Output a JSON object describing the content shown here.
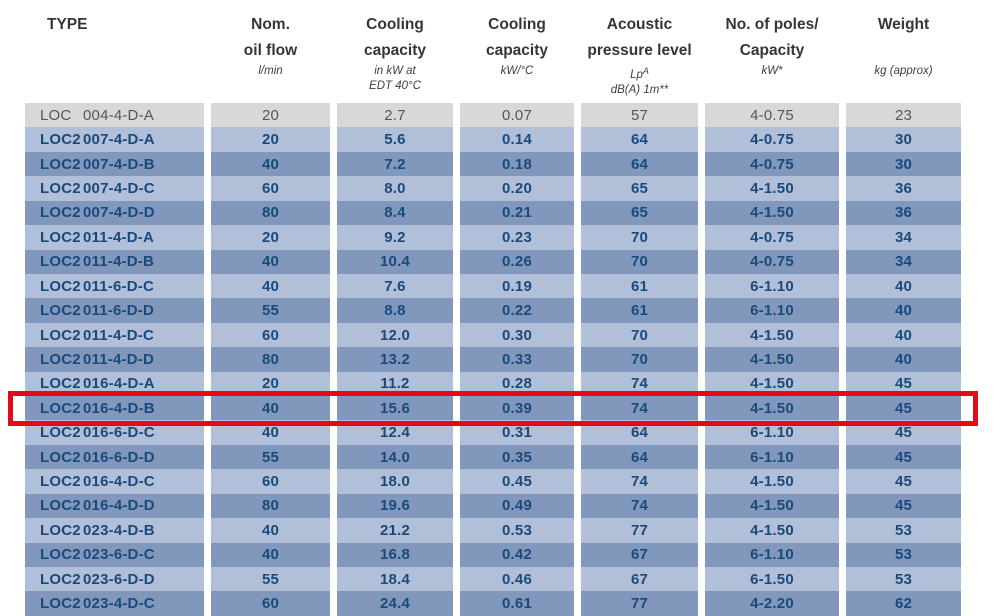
{
  "colors": {
    "page_background": "#ffffff",
    "row_gray_bg": "#d8d8d6",
    "row_gray_text": "#54575a",
    "row_light_blue_bg": "#b1bfd8",
    "row_medium_blue_bg": "#8197bb",
    "row_text_navy": "#1a4a7c",
    "header_text": "#333638",
    "highlight_red": "#e30b18"
  },
  "table": {
    "columns": [
      {
        "id": "type",
        "main": [
          "TYPE"
        ],
        "sub": []
      },
      {
        "id": "flow",
        "main": [
          "Nom.",
          "oil flow"
        ],
        "sub": [
          "l/min"
        ]
      },
      {
        "id": "cooling_kw",
        "main": [
          "Cooling",
          "capacity"
        ],
        "sub": [
          "in kW at",
          "EDT 40°C"
        ]
      },
      {
        "id": "cooling_kwc",
        "main": [
          "Cooling",
          "capacity"
        ],
        "sub": [
          "kW/°C"
        ]
      },
      {
        "id": "acoustic",
        "main": [
          "Acoustic",
          "pressure level"
        ],
        "sub": [
          [
            {
              "t": "L"
            },
            {
              "t": "p"
            },
            {
              "t": "A",
              "pos": "sup"
            }
          ],
          "dB(A) 1m**"
        ]
      },
      {
        "id": "poles",
        "main": [
          "No. of poles/",
          "Capacity"
        ],
        "sub": [
          "kW*"
        ]
      },
      {
        "id": "weight",
        "main": [
          "Weight"
        ],
        "sub": [
          "kg (approx)"
        ]
      }
    ],
    "rows": [
      {
        "prefix": "LOC",
        "model": "004-4-D-A",
        "flow": "20",
        "cooling_kw": "2.7",
        "cooling_kwc": "0.07",
        "acoustic": "57",
        "poles": "4-0.75",
        "weight": "23"
      },
      {
        "prefix": "LOC2",
        "model": "007-4-D-A",
        "flow": "20",
        "cooling_kw": "5.6",
        "cooling_kwc": "0.14",
        "acoustic": "64",
        "poles": "4-0.75",
        "weight": "30"
      },
      {
        "prefix": "LOC2",
        "model": "007-4-D-B",
        "flow": "40",
        "cooling_kw": "7.2",
        "cooling_kwc": "0.18",
        "acoustic": "64",
        "poles": "4-0.75",
        "weight": "30"
      },
      {
        "prefix": "LOC2",
        "model": "007-4-D-C",
        "flow": "60",
        "cooling_kw": "8.0",
        "cooling_kwc": "0.20",
        "acoustic": "65",
        "poles": "4-1.50",
        "weight": "36"
      },
      {
        "prefix": "LOC2",
        "model": "007-4-D-D",
        "flow": "80",
        "cooling_kw": "8.4",
        "cooling_kwc": "0.21",
        "acoustic": "65",
        "poles": "4-1.50",
        "weight": "36"
      },
      {
        "prefix": "LOC2",
        "model": "011-4-D-A",
        "flow": "20",
        "cooling_kw": "9.2",
        "cooling_kwc": "0.23",
        "acoustic": "70",
        "poles": "4-0.75",
        "weight": "34"
      },
      {
        "prefix": "LOC2",
        "model": "011-4-D-B",
        "flow": "40",
        "cooling_kw": "10.4",
        "cooling_kwc": "0.26",
        "acoustic": "70",
        "poles": "4-0.75",
        "weight": "34"
      },
      {
        "prefix": "LOC2",
        "model": "011-6-D-C",
        "flow": "40",
        "cooling_kw": "7.6",
        "cooling_kwc": "0.19",
        "acoustic": "61",
        "poles": "6-1.10",
        "weight": "40"
      },
      {
        "prefix": "LOC2",
        "model": "011-6-D-D",
        "flow": "55",
        "cooling_kw": "8.8",
        "cooling_kwc": "0.22",
        "acoustic": "61",
        "poles": "6-1.10",
        "weight": "40"
      },
      {
        "prefix": "LOC2",
        "model": "011-4-D-C",
        "flow": "60",
        "cooling_kw": "12.0",
        "cooling_kwc": "0.30",
        "acoustic": "70",
        "poles": "4-1.50",
        "weight": "40"
      },
      {
        "prefix": "LOC2",
        "model": "011-4-D-D",
        "flow": "80",
        "cooling_kw": "13.2",
        "cooling_kwc": "0.33",
        "acoustic": "70",
        "poles": "4-1.50",
        "weight": "40"
      },
      {
        "prefix": "LOC2",
        "model": "016-4-D-A",
        "flow": "20",
        "cooling_kw": "11.2",
        "cooling_kwc": "0.28",
        "acoustic": "74",
        "poles": "4-1.50",
        "weight": "45"
      },
      {
        "prefix": "LOC2",
        "model": "016-4-D-B",
        "flow": "40",
        "cooling_kw": "15.6",
        "cooling_kwc": "0.39",
        "acoustic": "74",
        "poles": "4-1.50",
        "weight": "45"
      },
      {
        "prefix": "LOC2",
        "model": "016-6-D-C",
        "flow": "40",
        "cooling_kw": "12.4",
        "cooling_kwc": "0.31",
        "acoustic": "64",
        "poles": "6-1.10",
        "weight": "45"
      },
      {
        "prefix": "LOC2",
        "model": "016-6-D-D",
        "flow": "55",
        "cooling_kw": "14.0",
        "cooling_kwc": "0.35",
        "acoustic": "64",
        "poles": "6-1.10",
        "weight": "45"
      },
      {
        "prefix": "LOC2",
        "model": "016-4-D-C",
        "flow": "60",
        "cooling_kw": "18.0",
        "cooling_kwc": "0.45",
        "acoustic": "74",
        "poles": "4-1.50",
        "weight": "45"
      },
      {
        "prefix": "LOC2",
        "model": "016-4-D-D",
        "flow": "80",
        "cooling_kw": "19.6",
        "cooling_kwc": "0.49",
        "acoustic": "74",
        "poles": "4-1.50",
        "weight": "45"
      },
      {
        "prefix": "LOC2",
        "model": "023-4-D-B",
        "flow": "40",
        "cooling_kw": "21.2",
        "cooling_kwc": "0.53",
        "acoustic": "77",
        "poles": "4-1.50",
        "weight": "53"
      },
      {
        "prefix": "LOC2",
        "model": "023-6-D-C",
        "flow": "40",
        "cooling_kw": "16.8",
        "cooling_kwc": "0.42",
        "acoustic": "67",
        "poles": "6-1.10",
        "weight": "53"
      },
      {
        "prefix": "LOC2",
        "model": "023-6-D-D",
        "flow": "55",
        "cooling_kw": "18.4",
        "cooling_kwc": "0.46",
        "acoustic": "67",
        "poles": "6-1.50",
        "weight": "53"
      },
      {
        "prefix": "LOC2",
        "model": "023-4-D-C",
        "flow": "60",
        "cooling_kw": "24.4",
        "cooling_kwc": "0.61",
        "acoustic": "77",
        "poles": "4-2.20",
        "weight": "62"
      }
    ],
    "highlighted_model": "016-4-D-B"
  }
}
